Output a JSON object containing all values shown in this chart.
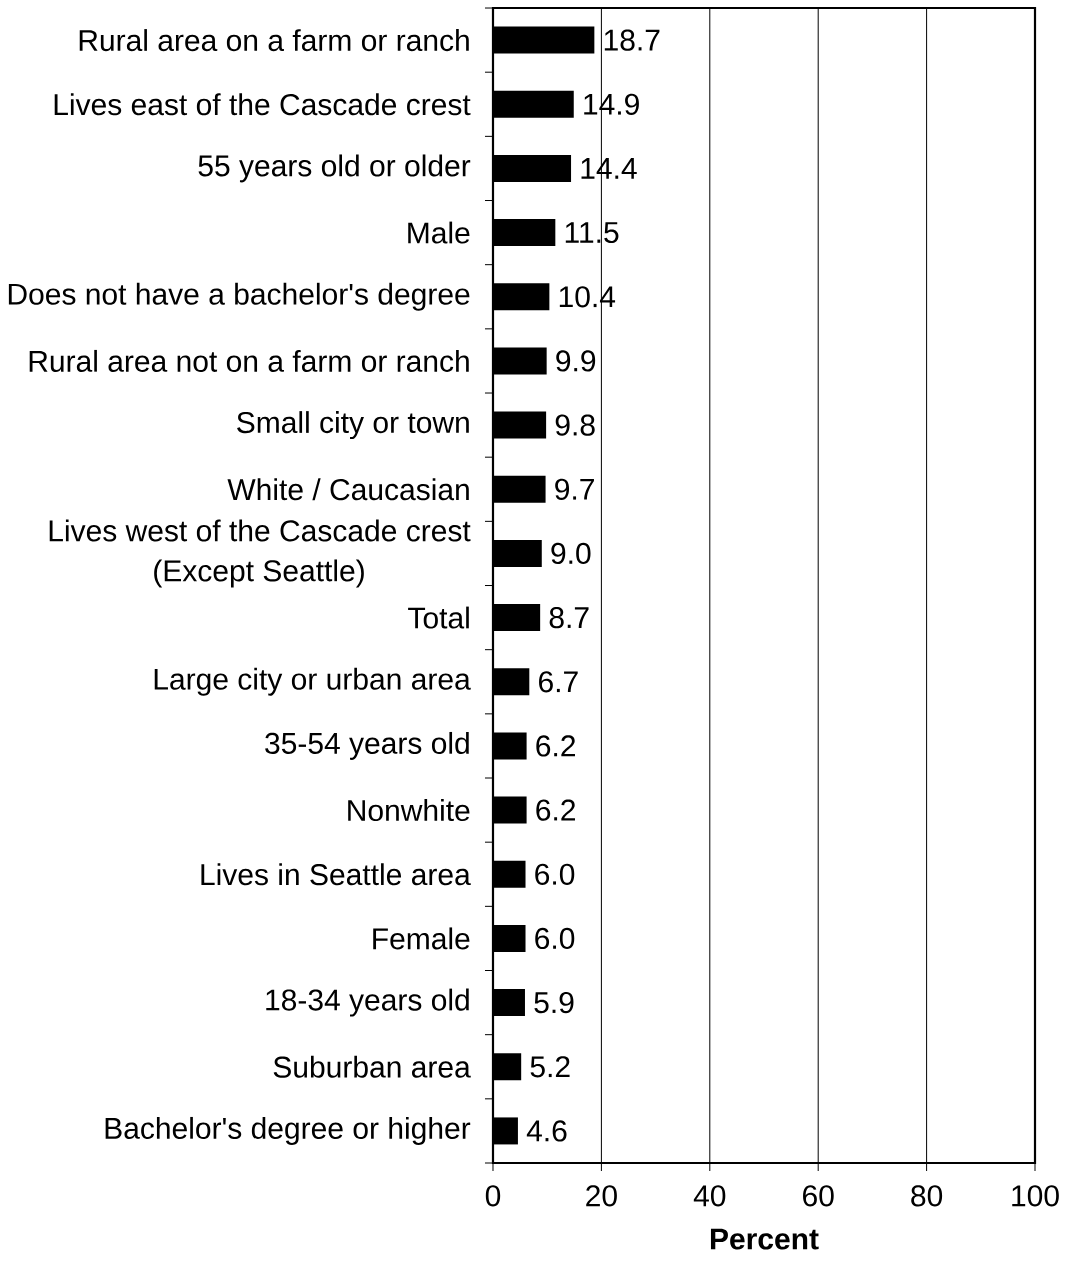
{
  "chart_data": {
    "type": "bar",
    "orientation": "horizontal",
    "xlabel": "Percent",
    "categories": [
      "Rural area on a farm or ranch",
      "Lives east of the Cascade crest",
      "55 years old or older",
      "Male",
      "Does not have a bachelor's degree",
      "Rural area not on a farm or ranch",
      "Small city or town",
      "White / Caucasian",
      "Lives west of the Cascade crest (Except Seattle)",
      "Total",
      "Large city or urban area",
      "35-54 years old",
      "Nonwhite",
      "Lives in Seattle area",
      "Female",
      "18-34 years old",
      "Suburban area",
      "Bachelor's degree or higher"
    ],
    "values": [
      18.7,
      14.9,
      14.4,
      11.5,
      10.4,
      9.9,
      9.8,
      9.7,
      9.0,
      8.7,
      6.7,
      6.2,
      6.2,
      6.0,
      6.0,
      5.9,
      5.2,
      4.6
    ],
    "value_labels": [
      "18.7",
      "14.9",
      "14.4",
      "11.5",
      "10.4",
      "9.9",
      "9.8",
      "9.7",
      "9.0",
      "8.7",
      "6.7",
      "6.2",
      "6.2",
      "6.0",
      "6.0",
      "5.9",
      "5.2",
      "4.6"
    ],
    "colors": [
      "#000000",
      "#000000",
      "#000000",
      "#000000",
      "#000000",
      "#000000",
      "#000000",
      "#000000",
      "#000000",
      "#000000",
      "#000000",
      "#000000",
      "#000000",
      "#000000",
      "#000000",
      "#000000",
      "#000000",
      "#000000"
    ],
    "xlim": [
      0,
      100
    ],
    "xticks": [
      0,
      20,
      40,
      60,
      80,
      100
    ],
    "grid": "x"
  }
}
